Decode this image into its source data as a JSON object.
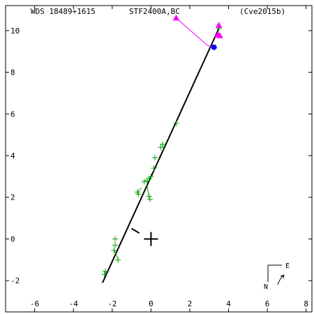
{
  "header": {
    "left": "WDS 18489+1615",
    "center": "STF2400A,BC",
    "right": "(Cve2015b)"
  },
  "compass": {
    "north_label": "N",
    "east_label": "E"
  },
  "colors": {
    "frame": "#000000",
    "orbit": "#000000",
    "observations": "#00a000",
    "predicted": "#ff00ff",
    "current": "#0000ff"
  },
  "chart_data": {
    "type": "scatter",
    "title": "",
    "xlabel": "",
    "ylabel": "",
    "xlim": [
      -7.5,
      8.3
    ],
    "ylim": [
      -3.5,
      11.2
    ],
    "x_ticks": [
      -6,
      -4,
      -2,
      0,
      2,
      4,
      6,
      8
    ],
    "y_ticks": [
      -2,
      0,
      2,
      4,
      6,
      8,
      10
    ],
    "grid": false,
    "series": [
      {
        "kind": "orbit-line",
        "points": [
          [
            -2.5,
            -2.1
          ],
          [
            3.55,
            10.2
          ]
        ]
      },
      {
        "kind": "observations-plus",
        "points": [
          [
            -2.4,
            -1.7
          ],
          [
            -2.35,
            -1.55
          ],
          [
            -1.9,
            -0.55
          ],
          [
            -1.85,
            -0.3
          ],
          [
            -1.85,
            0.0
          ],
          [
            -1.7,
            -1.0
          ],
          [
            -0.7,
            2.25
          ],
          [
            -0.65,
            2.15
          ],
          [
            -0.35,
            2.75
          ],
          [
            -0.2,
            2.8
          ],
          [
            -0.1,
            2.9
          ],
          [
            -0.1,
            2.05
          ],
          [
            -0.05,
            1.9
          ],
          [
            0.0,
            3.0
          ],
          [
            0.15,
            3.4
          ],
          [
            0.2,
            3.9
          ],
          [
            0.5,
            4.4
          ],
          [
            0.6,
            4.55
          ],
          [
            1.3,
            5.55
          ],
          [
            3.5,
            10.1
          ]
        ]
      },
      {
        "kind": "observation-residuals",
        "segments": [
          [
            [
              -2.4,
              -1.7
            ],
            [
              -2.3,
              -1.55
            ]
          ],
          [
            [
              -1.9,
              -0.55
            ],
            [
              -1.7,
              -0.95
            ]
          ],
          [
            [
              -0.7,
              2.25
            ],
            [
              -0.5,
              2.45
            ]
          ],
          [
            [
              -0.1,
              2.05
            ],
            [
              -0.2,
              2.55
            ]
          ],
          [
            [
              0.6,
              4.55
            ],
            [
              0.65,
              4.3
            ]
          ]
        ]
      },
      {
        "kind": "predicted-triangles",
        "points": [
          [
            1.3,
            10.6
          ],
          [
            3.5,
            10.25
          ],
          [
            3.45,
            9.8
          ],
          [
            3.55,
            9.75
          ]
        ]
      },
      {
        "kind": "predicted-path",
        "points": [
          [
            1.3,
            10.6
          ],
          [
            2.9,
            9.3
          ],
          [
            3.25,
            9.2
          ]
        ]
      },
      {
        "kind": "current-position",
        "points": [
          [
            3.25,
            9.2
          ]
        ]
      },
      {
        "kind": "primary-marker",
        "points": [
          [
            0,
            0
          ]
        ]
      },
      {
        "kind": "node-line",
        "points": [
          [
            -1.0,
            0.5
          ],
          [
            -0.6,
            0.28
          ]
        ]
      }
    ]
  }
}
